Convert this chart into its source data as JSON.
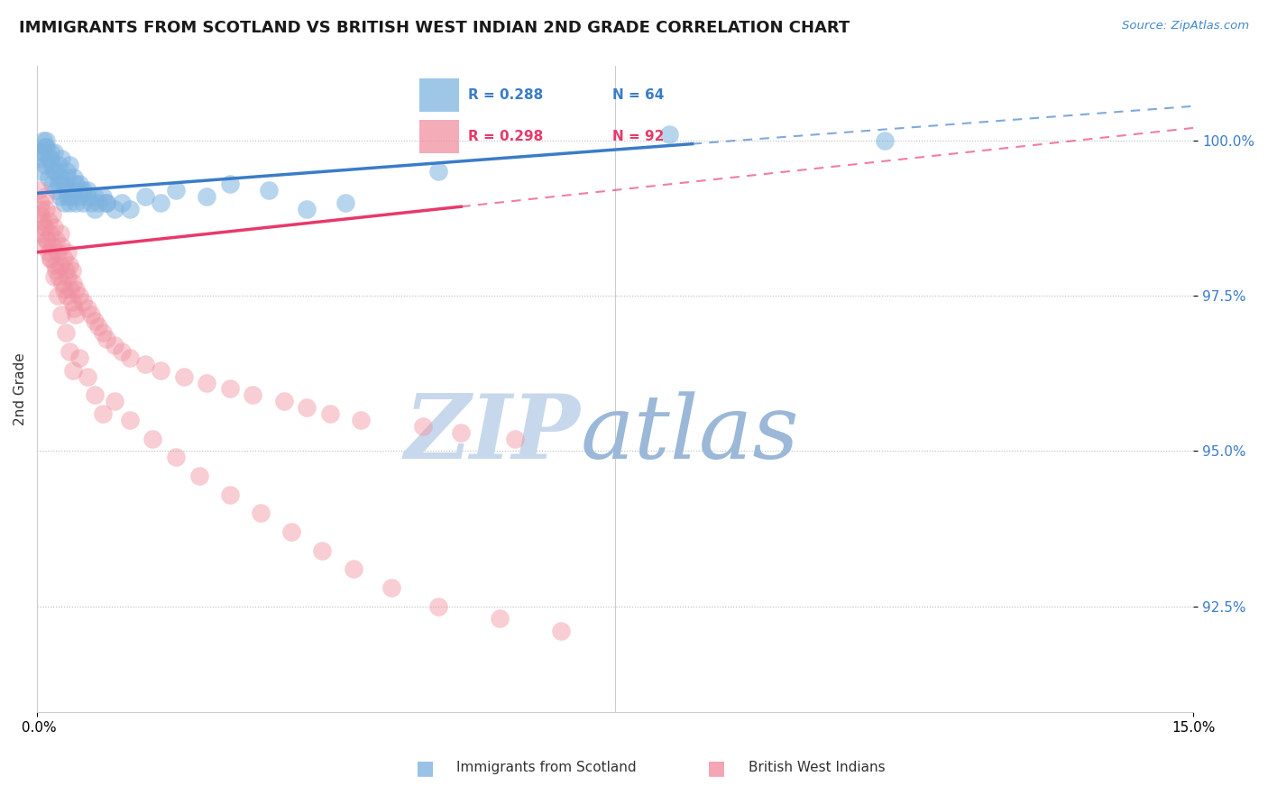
{
  "title": "IMMIGRANTS FROM SCOTLAND VS BRITISH WEST INDIAN 2ND GRADE CORRELATION CHART",
  "source_text": "Source: ZipAtlas.com",
  "ylabel": "2nd Grade",
  "ytick_labels": [
    "92.5%",
    "95.0%",
    "97.5%",
    "100.0%"
  ],
  "ytick_values": [
    92.5,
    95.0,
    97.5,
    100.0
  ],
  "legend_blue_label": "Immigrants from Scotland",
  "legend_pink_label": "British West Indians",
  "legend_blue_r": "R = 0.288",
  "legend_blue_n": "N = 64",
  "legend_pink_r": "R = 0.298",
  "legend_pink_n": "N = 92",
  "blue_color": "#7EB3E0",
  "pink_color": "#F090A0",
  "trend_blue_color": "#3A7CC8",
  "trend_pink_color": "#E8396A",
  "watermark_zip": "ZIP",
  "watermark_atlas": "atlas",
  "watermark_zip_color": "#C8D8EC",
  "watermark_atlas_color": "#9BB8D8",
  "xmin": 0.0,
  "xmax": 15.0,
  "ymin": 90.8,
  "ymax": 101.2,
  "blue_trend_x0": 0.0,
  "blue_trend_y0": 99.15,
  "blue_trend_x1": 15.0,
  "blue_trend_y1": 100.55,
  "pink_trend_x0": 0.0,
  "pink_trend_y0": 98.2,
  "pink_trend_x1": 15.0,
  "pink_trend_y1": 100.2,
  "blue_solid_end": 8.5,
  "pink_solid_end": 5.5,
  "blue_scatter_x": [
    0.05,
    0.05,
    0.08,
    0.1,
    0.1,
    0.12,
    0.15,
    0.15,
    0.18,
    0.2,
    0.2,
    0.22,
    0.25,
    0.25,
    0.28,
    0.3,
    0.3,
    0.35,
    0.35,
    0.38,
    0.4,
    0.4,
    0.42,
    0.45,
    0.45,
    0.5,
    0.5,
    0.55,
    0.6,
    0.6,
    0.65,
    0.7,
    0.75,
    0.8,
    0.85,
    0.9,
    1.0,
    1.1,
    1.2,
    1.4,
    1.6,
    1.8,
    2.2,
    2.5,
    3.0,
    3.5,
    4.0,
    5.2,
    8.2,
    11.0,
    0.05,
    0.08,
    0.12,
    0.18,
    0.22,
    0.28,
    0.32,
    0.38,
    0.42,
    0.48,
    0.55,
    0.65,
    0.75,
    0.9
  ],
  "blue_scatter_y": [
    99.5,
    99.8,
    100.0,
    99.6,
    99.9,
    100.0,
    99.4,
    99.7,
    99.8,
    99.3,
    99.6,
    99.5,
    99.2,
    99.5,
    99.3,
    99.1,
    99.4,
    99.0,
    99.3,
    99.2,
    99.1,
    99.4,
    99.0,
    99.2,
    99.1,
    99.0,
    99.3,
    99.1,
    99.0,
    99.2,
    99.1,
    99.0,
    98.9,
    99.0,
    99.1,
    99.0,
    98.9,
    99.0,
    98.9,
    99.1,
    99.0,
    99.2,
    99.1,
    99.3,
    99.2,
    98.9,
    99.0,
    99.5,
    100.1,
    100.0,
    99.7,
    99.8,
    99.9,
    99.7,
    99.8,
    99.6,
    99.7,
    99.5,
    99.6,
    99.4,
    99.3,
    99.2,
    99.1,
    99.0
  ],
  "pink_scatter_x": [
    0.02,
    0.03,
    0.05,
    0.05,
    0.07,
    0.08,
    0.1,
    0.1,
    0.12,
    0.13,
    0.15,
    0.15,
    0.17,
    0.18,
    0.2,
    0.2,
    0.22,
    0.23,
    0.25,
    0.25,
    0.27,
    0.28,
    0.3,
    0.3,
    0.32,
    0.33,
    0.35,
    0.35,
    0.37,
    0.38,
    0.4,
    0.4,
    0.42,
    0.43,
    0.45,
    0.45,
    0.47,
    0.48,
    0.5,
    0.5,
    0.55,
    0.6,
    0.65,
    0.7,
    0.75,
    0.8,
    0.85,
    0.9,
    1.0,
    1.1,
    1.2,
    1.4,
    1.6,
    1.9,
    2.2,
    2.5,
    2.8,
    3.2,
    3.5,
    3.8,
    4.2,
    5.0,
    5.5,
    6.2,
    0.05,
    0.08,
    0.12,
    0.17,
    0.22,
    0.27,
    0.32,
    0.37,
    0.42,
    0.47,
    0.55,
    0.65,
    0.75,
    0.85,
    1.0,
    1.2,
    1.5,
    1.8,
    2.1,
    2.5,
    2.9,
    3.3,
    3.7,
    4.1,
    4.6,
    5.2,
    6.0,
    6.8
  ],
  "pink_scatter_y": [
    99.2,
    98.8,
    99.0,
    98.5,
    98.7,
    98.3,
    99.1,
    98.6,
    98.9,
    98.4,
    98.7,
    98.2,
    98.5,
    98.1,
    98.8,
    98.3,
    98.6,
    98.0,
    98.4,
    97.9,
    98.2,
    97.8,
    98.5,
    98.0,
    98.3,
    97.7,
    98.1,
    97.6,
    97.9,
    97.5,
    98.2,
    97.8,
    98.0,
    97.6,
    97.9,
    97.4,
    97.7,
    97.3,
    97.6,
    97.2,
    97.5,
    97.4,
    97.3,
    97.2,
    97.1,
    97.0,
    96.9,
    96.8,
    96.7,
    96.6,
    96.5,
    96.4,
    96.3,
    96.2,
    96.1,
    96.0,
    95.9,
    95.8,
    95.7,
    95.6,
    95.5,
    95.4,
    95.3,
    95.2,
    98.9,
    98.6,
    98.4,
    98.1,
    97.8,
    97.5,
    97.2,
    96.9,
    96.6,
    96.3,
    96.5,
    96.2,
    95.9,
    95.6,
    95.8,
    95.5,
    95.2,
    94.9,
    94.6,
    94.3,
    94.0,
    93.7,
    93.4,
    93.1,
    92.8,
    92.5,
    92.3,
    92.1
  ]
}
